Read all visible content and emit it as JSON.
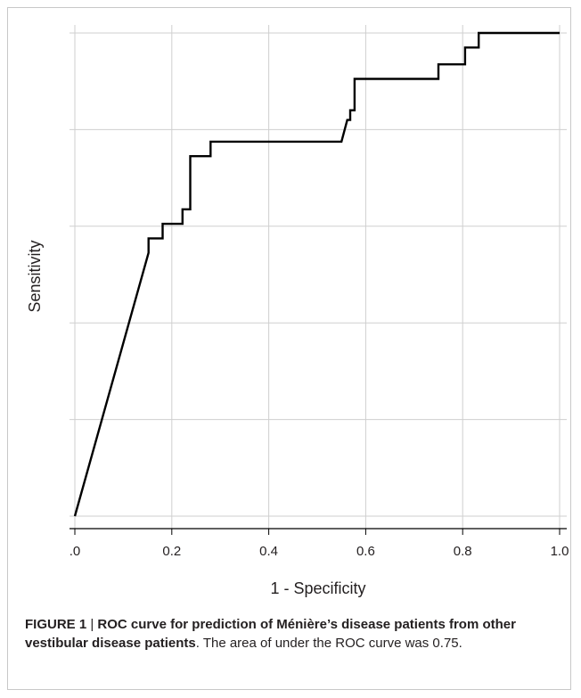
{
  "chart_data": {
    "type": "line",
    "title": "",
    "xlabel": "1 - Specificity",
    "ylabel": "Sensitivity",
    "xlim": [
      0,
      1
    ],
    "ylim": [
      0,
      1
    ],
    "xticks": [
      ".0",
      "0.2",
      "0.4",
      "0.6",
      "0.8",
      "1.0"
    ],
    "grid": true,
    "series": [
      {
        "x": [
          0,
          0.152,
          0.152,
          0.181,
          0.181,
          0.222,
          0.222,
          0.238,
          0.238,
          0.28,
          0.28,
          0.55,
          0.562,
          0.568,
          0.568,
          0.577,
          0.577,
          0.75,
          0.75,
          0.805,
          0.805,
          0.833,
          0.833,
          1.0
        ],
        "y": [
          0,
          0.545,
          0.575,
          0.575,
          0.605,
          0.605,
          0.635,
          0.635,
          0.745,
          0.745,
          0.775,
          0.775,
          0.82,
          0.82,
          0.84,
          0.84,
          0.905,
          0.905,
          0.935,
          0.935,
          0.97,
          0.97,
          1.0,
          1.0
        ]
      }
    ]
  },
  "caption": {
    "figure_label": "FIGURE 1",
    "separator": " | ",
    "bold_text": "ROC curve for prediction of Ménière’s disease patients from other vestibular disease patients",
    "normal_text": ". The area of under the ROC curve was 0.75."
  },
  "colors": {
    "line": "#000000",
    "grid": "#cfcfcf",
    "axis": "#000000",
    "text": "#231f20"
  }
}
